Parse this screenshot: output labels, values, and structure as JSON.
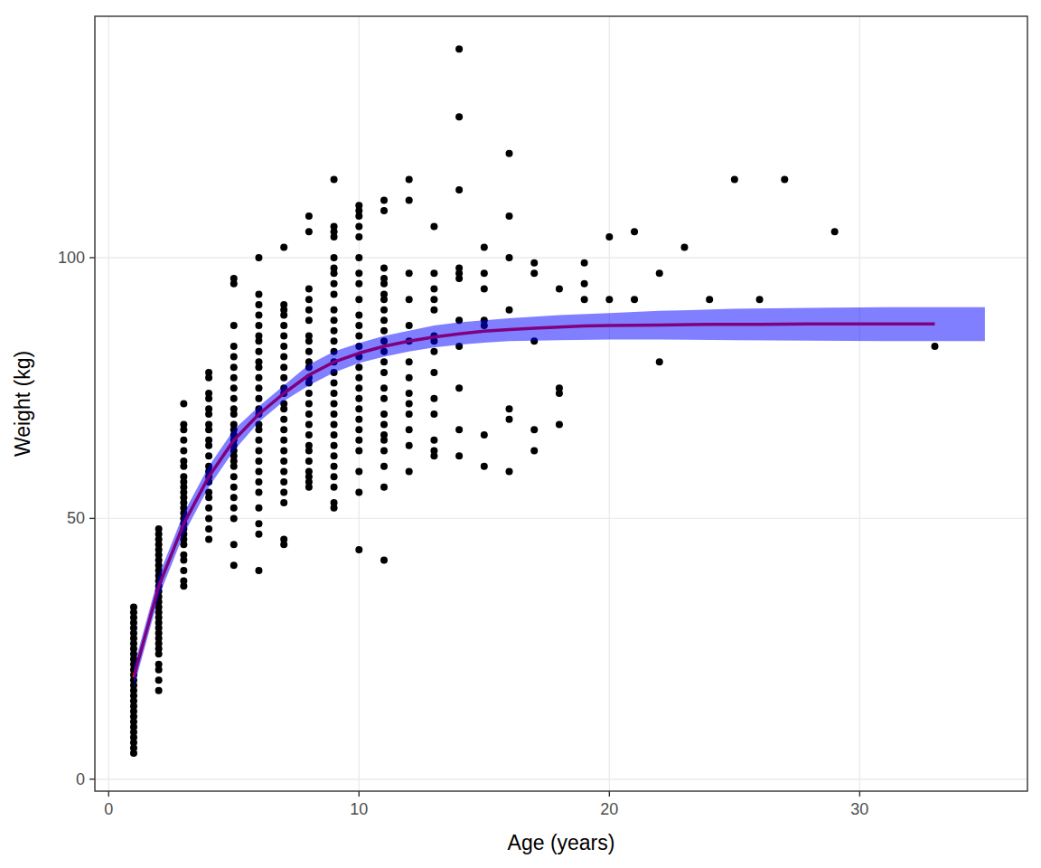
{
  "chart_data": {
    "type": "scatter",
    "x_label": "Age (years)",
    "y_label": "Weight (kg)",
    "xlim": [
      -0.55,
      36.7
    ],
    "ylim": [
      -2.3,
      146.3
    ],
    "xticks": [
      0,
      10,
      20,
      30
    ],
    "yticks": [
      0,
      50,
      100
    ],
    "grid": true,
    "series": [
      {
        "type": "scatter",
        "color": "black",
        "marker": "circle",
        "x": [
          1,
          1,
          1,
          1,
          1,
          1,
          1,
          1,
          1,
          1,
          1,
          1,
          1,
          1,
          1,
          1,
          1,
          1,
          1,
          1,
          1,
          1,
          1,
          1,
          1,
          1,
          1,
          1,
          1,
          2,
          2,
          2,
          2,
          2,
          2,
          2,
          2,
          2,
          2,
          2,
          2,
          2,
          2,
          2,
          2,
          2,
          2,
          2,
          2,
          2,
          2,
          2,
          2,
          2,
          2,
          2,
          2,
          2,
          3,
          3,
          3,
          3,
          3,
          3,
          3,
          3,
          3,
          3,
          3,
          3,
          3,
          3,
          3,
          3,
          3,
          3,
          3,
          3,
          3,
          3,
          3,
          3,
          3,
          3,
          4,
          4,
          4,
          4,
          4,
          4,
          4,
          4,
          4,
          4,
          4,
          4,
          4,
          4,
          4,
          4,
          4,
          4,
          4,
          4,
          4,
          5,
          5,
          5,
          5,
          5,
          5,
          5,
          5,
          5,
          5,
          5,
          5,
          5,
          5,
          5,
          5,
          5,
          5,
          5,
          5,
          5,
          5,
          5,
          5,
          5,
          5,
          5,
          6,
          6,
          6,
          6,
          6,
          6,
          6,
          6,
          6,
          6,
          6,
          6,
          6,
          6,
          6,
          6,
          6,
          6,
          6,
          6,
          6,
          6,
          6,
          6,
          6,
          6,
          6,
          7,
          7,
          7,
          7,
          7,
          7,
          7,
          7,
          7,
          7,
          7,
          7,
          7,
          7,
          7,
          7,
          7,
          7,
          7,
          7,
          7,
          7,
          7,
          7,
          7,
          8,
          8,
          8,
          8,
          8,
          8,
          8,
          8,
          8,
          8,
          8,
          8,
          8,
          8,
          8,
          8,
          8,
          8,
          8,
          8,
          8,
          8,
          8,
          8,
          8,
          9,
          9,
          9,
          9,
          9,
          9,
          9,
          9,
          9,
          9,
          9,
          9,
          9,
          9,
          9,
          9,
          9,
          9,
          9,
          9,
          9,
          9,
          9,
          9,
          9,
          9,
          9,
          9,
          9,
          10,
          10,
          10,
          10,
          10,
          10,
          10,
          10,
          10,
          10,
          10,
          10,
          10,
          10,
          10,
          10,
          10,
          10,
          10,
          10,
          10,
          10,
          10,
          10,
          10,
          10,
          11,
          11,
          11,
          11,
          11,
          11,
          11,
          11,
          11,
          11,
          11,
          11,
          11,
          11,
          11,
          11,
          11,
          11,
          11,
          11,
          11,
          11,
          11,
          11,
          12,
          12,
          12,
          12,
          12,
          12,
          12,
          12,
          12,
          12,
          12,
          12,
          12,
          12,
          13,
          13,
          13,
          13,
          13,
          13,
          13,
          13,
          13,
          13,
          13,
          13,
          13,
          13,
          14,
          14,
          14,
          14,
          14,
          14,
          14,
          14,
          14,
          14,
          14,
          15,
          15,
          15,
          15,
          15,
          15,
          15,
          16,
          16,
          16,
          16,
          16,
          16,
          16,
          17,
          17,
          17,
          17,
          17,
          18,
          18,
          18,
          18,
          19,
          19,
          19,
          20,
          20,
          21,
          21,
          22,
          22,
          23,
          24,
          25,
          26,
          27,
          29,
          33
        ],
        "values": [
          5,
          6,
          7,
          8,
          9,
          10,
          11,
          12,
          13,
          14,
          15,
          16,
          17,
          18,
          19,
          20,
          21,
          22,
          23,
          24,
          25,
          26,
          27,
          28,
          29,
          30,
          31,
          32,
          33,
          17,
          19,
          21,
          22,
          24,
          25,
          26,
          27,
          28,
          29,
          30,
          31,
          32,
          33,
          34,
          35,
          36,
          37,
          38,
          39,
          40,
          41,
          42,
          43,
          44,
          45,
          46,
          47,
          48,
          37,
          38,
          40,
          42,
          43,
          45,
          46,
          47,
          48,
          49,
          50,
          51,
          52,
          53,
          54,
          55,
          56,
          57,
          58,
          60,
          61,
          63,
          65,
          67,
          68,
          72,
          46,
          48,
          50,
          52,
          54,
          55,
          57,
          58,
          59,
          60,
          62,
          64,
          65,
          67,
          68,
          70,
          71,
          73,
          74,
          77,
          78,
          41,
          45,
          50,
          52,
          54,
          56,
          58,
          60,
          61,
          62,
          63,
          64,
          65,
          66,
          67,
          68,
          70,
          71,
          73,
          75,
          77,
          79,
          81,
          83,
          87,
          95,
          96,
          40,
          47,
          49,
          52,
          55,
          57,
          59,
          61,
          63,
          65,
          67,
          68,
          70,
          71,
          73,
          75,
          77,
          79,
          80,
          82,
          84,
          85,
          87,
          89,
          91,
          93,
          100,
          45,
          46,
          53,
          55,
          57,
          59,
          61,
          63,
          65,
          67,
          69,
          71,
          72,
          74,
          75,
          77,
          79,
          81,
          83,
          85,
          87,
          89,
          90,
          91,
          102,
          56,
          57,
          58,
          59,
          61,
          63,
          64,
          66,
          68,
          70,
          72,
          74,
          76,
          77,
          79,
          80,
          82,
          84,
          85,
          88,
          90,
          92,
          94,
          105,
          108,
          52,
          53,
          56,
          58,
          60,
          62,
          64,
          66,
          68,
          70,
          72,
          74,
          76,
          78,
          80,
          82,
          84,
          86,
          88,
          90,
          93,
          95,
          97,
          98,
          100,
          104,
          105,
          106,
          115,
          44,
          55,
          59,
          63,
          65,
          67,
          69,
          71,
          73,
          75,
          77,
          79,
          81,
          83,
          85,
          87,
          89,
          92,
          95,
          97,
          100,
          104,
          106,
          108,
          109,
          110,
          42,
          56,
          60,
          63,
          65,
          66,
          68,
          70,
          73,
          75,
          78,
          80,
          82,
          84,
          86,
          88,
          90,
          92,
          93,
          95,
          96,
          98,
          109,
          111,
          59,
          64,
          67,
          70,
          72,
          74,
          77,
          80,
          84,
          87,
          92,
          97,
          111,
          115,
          62,
          63,
          65,
          70,
          73,
          78,
          82,
          84,
          85,
          90,
          92,
          94,
          97,
          106,
          62,
          67,
          75,
          83,
          88,
          96,
          97,
          98,
          113,
          127,
          140,
          60,
          66,
          87,
          88,
          94,
          97,
          102,
          59,
          69,
          71,
          90,
          100,
          108,
          120,
          63,
          67,
          84,
          97,
          99,
          68,
          74,
          75,
          94,
          92,
          95,
          99,
          92,
          104,
          92,
          105,
          80,
          97,
          102,
          92,
          115,
          92,
          115,
          105,
          83
        ]
      },
      {
        "type": "line",
        "color": "red",
        "line_style": "solid",
        "x": [
          1,
          2,
          3,
          4,
          5,
          6,
          7,
          8,
          9,
          10,
          11,
          12,
          13,
          14,
          15,
          16,
          17,
          18,
          19,
          20,
          22,
          24,
          26,
          28,
          30,
          33
        ],
        "values": [
          19.5,
          37,
          49,
          58,
          65,
          70,
          74,
          77.5,
          80,
          81.7,
          83,
          84,
          84.8,
          85.4,
          85.9,
          86.2,
          86.5,
          86.7,
          86.9,
          87,
          87.1,
          87.2,
          87.2,
          87.3,
          87.3,
          87.3
        ]
      },
      {
        "type": "band",
        "color": "blue",
        "x": [
          1,
          2,
          3,
          4,
          5,
          6,
          7,
          8,
          9,
          10,
          11,
          12,
          13,
          14,
          15,
          16,
          18,
          20,
          22,
          25,
          28,
          31,
          35
        ],
        "lower": [
          17.5,
          35,
          47,
          56,
          63,
          68.5,
          72.5,
          75.5,
          78,
          79.8,
          81,
          82,
          82.8,
          83.3,
          83.7,
          84,
          84.2,
          84.3,
          84.3,
          84.2,
          84.1,
          84,
          84
        ],
        "upper": [
          21.5,
          39,
          51,
          60,
          67,
          71.5,
          75.5,
          79.5,
          82,
          83.6,
          85,
          86,
          87,
          87.6,
          88,
          88.4,
          89,
          89.4,
          89.8,
          90.2,
          90.4,
          90.5,
          90.5
        ]
      }
    ]
  }
}
